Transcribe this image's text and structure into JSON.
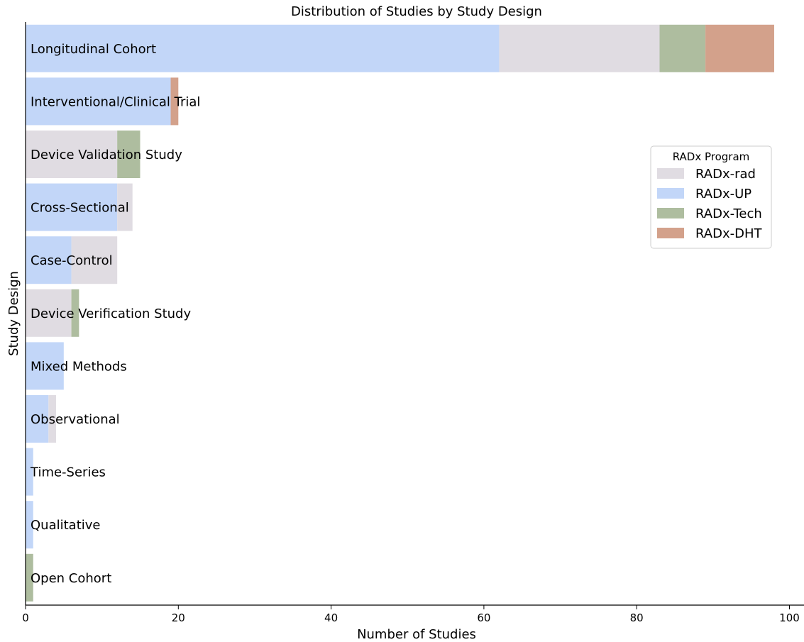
{
  "chart_data": {
    "type": "bar",
    "orientation": "horizontal",
    "stacked": true,
    "title": "Distribution of Studies by Study Design",
    "xlabel": "Number of Studies",
    "ylabel": "Study Design",
    "xlim": [
      0,
      102
    ],
    "xticks": [
      0,
      20,
      40,
      60,
      80,
      100
    ],
    "grid": false,
    "legend": {
      "title": "RADx Program",
      "placement": "right",
      "entries": [
        "RADx-rad",
        "RADx-UP",
        "RADx-Tech",
        "RADx-DHT"
      ]
    },
    "categories": [
      "Longitudinal Cohort",
      "Interventional/Clinical Trial",
      "Device Validation Study",
      "Cross-Sectional",
      "Case-Control",
      "Device Verification Study",
      "Mixed Methods",
      "Observational",
      "Time-Series",
      "Qualitative",
      "Open Cohort"
    ],
    "stack_order": [
      "RADx-UP",
      "RADx-rad",
      "RADx-Tech",
      "RADx-DHT"
    ],
    "series": [
      {
        "name": "RADx-rad",
        "color": "#e0dce2",
        "values": [
          21,
          0,
          12,
          2,
          6,
          6,
          0,
          1,
          0,
          0,
          0
        ]
      },
      {
        "name": "RADx-UP",
        "color": "#c2d6f8",
        "values": [
          62,
          19,
          0,
          12,
          6,
          0,
          5,
          3,
          1,
          1,
          0
        ]
      },
      {
        "name": "RADx-Tech",
        "color": "#aebd9f",
        "values": [
          6,
          0,
          3,
          0,
          0,
          1,
          0,
          0,
          0,
          0,
          1
        ]
      },
      {
        "name": "RADx-DHT",
        "color": "#d3a18b",
        "values": [
          9,
          1,
          0,
          0,
          0,
          0,
          0,
          0,
          0,
          0,
          0
        ]
      }
    ]
  }
}
